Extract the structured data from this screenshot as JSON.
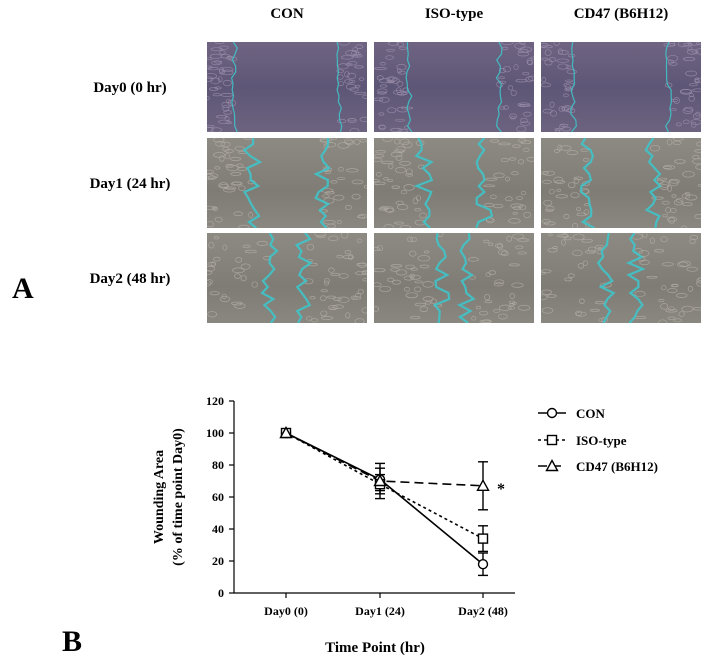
{
  "panel_a": {
    "letter": "A",
    "columns": [
      "CON",
      "ISO-type",
      "CD47 (B6H12)"
    ],
    "rows": [
      "Day0 (0 hr)",
      "Day1 (24 hr)",
      "Day2 (48 hr)"
    ]
  },
  "panel_b": {
    "letter": "B"
  },
  "colors": {
    "wound_outline": "#3fc4c9",
    "day0_tint": "#65597a",
    "later_tint": "#86837c",
    "line": "#000000"
  },
  "chart_data": {
    "type": "line",
    "categories": [
      "Day0 (0)",
      "Day1 (24)",
      "Day2 (48)"
    ],
    "xlabel": "Time Point (hr)",
    "ylabel": "Wounding Area",
    "ylabel2": "(% of time point Day0)",
    "ylim": [
      0,
      120
    ],
    "yticks": [
      0,
      20,
      40,
      60,
      80,
      100,
      120
    ],
    "legend_position": "top-right",
    "annotation": "*",
    "series": [
      {
        "name": "CON",
        "marker": "circle",
        "line": "solid",
        "values": [
          100,
          71,
          18
        ],
        "errors": [
          0,
          7,
          7
        ]
      },
      {
        "name": "ISO-type",
        "marker": "square",
        "line": "dotted",
        "values": [
          100,
          68,
          34
        ],
        "errors": [
          0,
          6,
          8
        ]
      },
      {
        "name": "CD47 (B6H12)",
        "marker": "triangle",
        "line": "dashed",
        "values": [
          100,
          70,
          67
        ],
        "errors": [
          0,
          11,
          15
        ]
      }
    ]
  }
}
